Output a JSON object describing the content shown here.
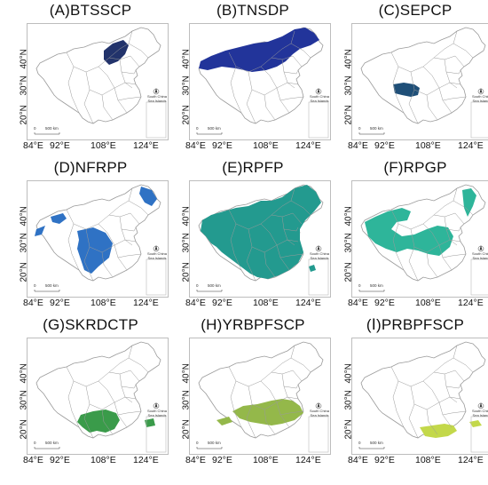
{
  "panels": [
    {
      "label": "(A)BTSSCP",
      "color": "#22336b",
      "region": "btss"
    },
    {
      "label": "(B)TNSDP",
      "color": "#22349a",
      "region": "tnsd"
    },
    {
      "label": "(C)SEPCP",
      "color": "#1f4f78",
      "region": "sep"
    },
    {
      "label": "(D)NFRPP",
      "color": "#2f72c4",
      "region": "nfrp"
    },
    {
      "label": "(E)RPFP",
      "color": "#239a8f",
      "region": "rpfp"
    },
    {
      "label": "(F)RPGP",
      "color": "#2eb59a",
      "region": "rpgp"
    },
    {
      "label": "(G)SKRDCTP",
      "color": "#3a9b4a",
      "region": "skrd"
    },
    {
      "label": "(H)YRBPFSCP",
      "color": "#94b84a",
      "region": "yrb"
    },
    {
      "label": "(Ⅰ)PRBPFSCP",
      "color": "#c3d84a",
      "region": "prb"
    }
  ],
  "axes": {
    "y_ticks": [
      "40°N",
      "30°N",
      "20°N"
    ],
    "x_ticks": [
      "84°E",
      "92°E",
      "108°E",
      "124°E"
    ]
  },
  "scale_bar": {
    "zero": "0",
    "distance": "500 km"
  },
  "inset": {
    "label_line1": "South China",
    "label_line2": "Sea Islands"
  },
  "colors": {
    "boundary": "#9a9a9a",
    "frame": "#bdbdbd"
  }
}
